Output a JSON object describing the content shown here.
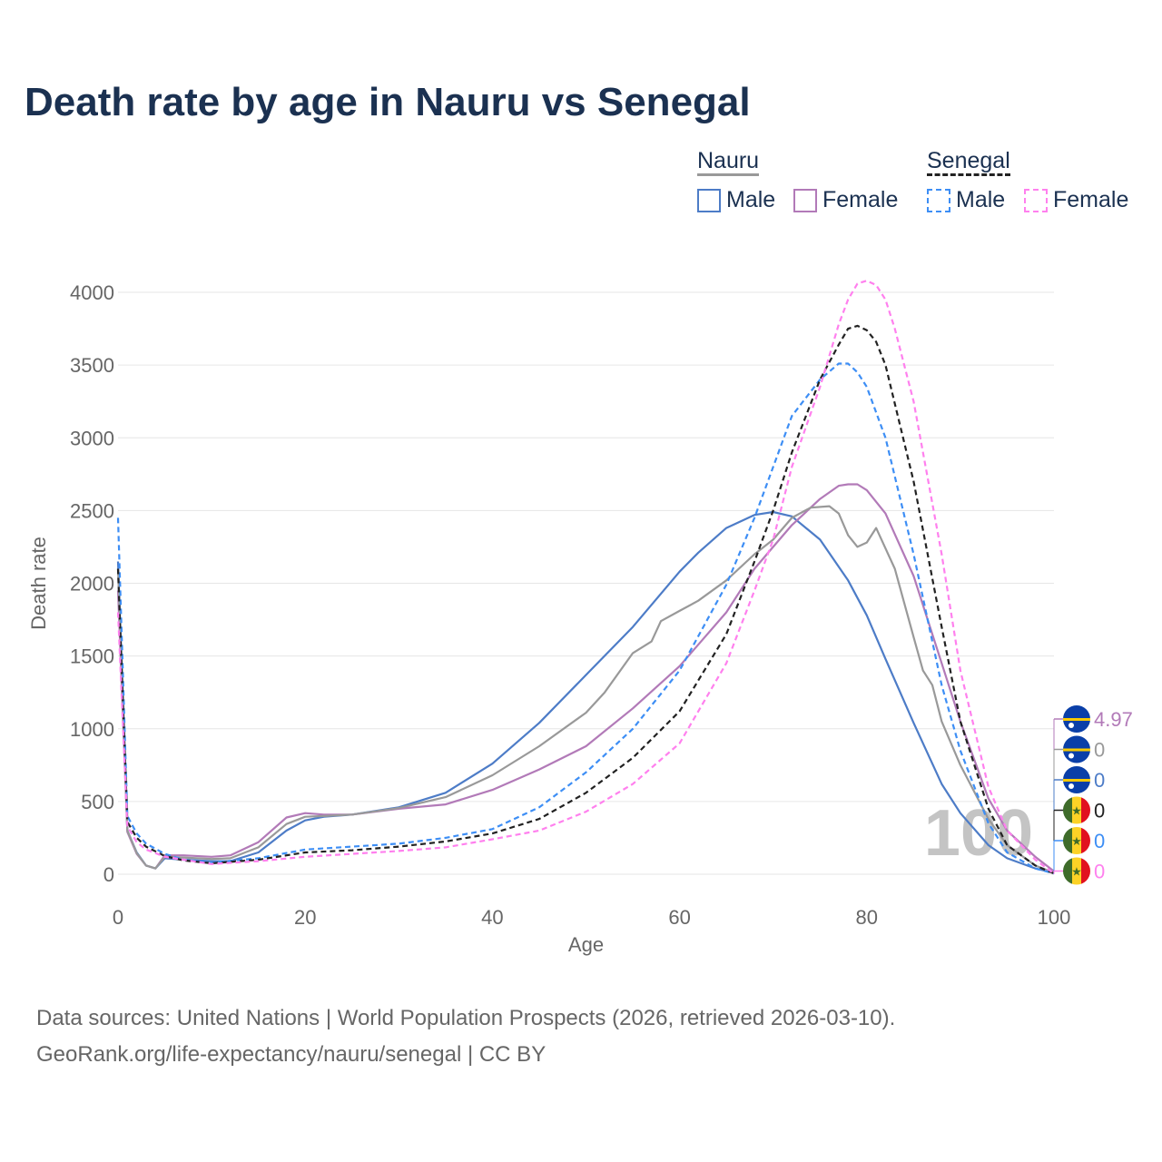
{
  "chart_data": {
    "type": "line",
    "title": "Death rate by age in Nauru vs Senegal",
    "xlabel": "Age",
    "ylabel": "Death rate",
    "xlim": [
      0,
      100
    ],
    "ylim": [
      0,
      4000
    ],
    "xticks": [
      "0",
      "20",
      "40",
      "60",
      "80",
      "100"
    ],
    "yticks": [
      "0",
      "500",
      "1000",
      "1500",
      "2000",
      "2500",
      "3000",
      "3500",
      "4000"
    ],
    "grid": true,
    "legend": {
      "groups": [
        {
          "name": "Nauru",
          "items": [
            "Male",
            "Female"
          ]
        },
        {
          "name": "Senegal",
          "items": [
            "Male",
            "Female"
          ]
        }
      ],
      "placement": "top-right"
    },
    "year_watermark": "100",
    "series": [
      {
        "name": "Nauru Male",
        "color": "#4d7cc7",
        "dash": false,
        "x": [
          0,
          1,
          2,
          3,
          4,
          5,
          7,
          10,
          12,
          15,
          18,
          20,
          22,
          25,
          30,
          35,
          40,
          45,
          50,
          55,
          60,
          62,
          65,
          68,
          70,
          72,
          75,
          78,
          80,
          82,
          85,
          88,
          90,
          93,
          95,
          98,
          100
        ],
        "y": [
          2150,
          300,
          150,
          60,
          40,
          110,
          100,
          90,
          90,
          150,
          300,
          370,
          395,
          410,
          460,
          560,
          760,
          1040,
          1370,
          1700,
          2080,
          2210,
          2380,
          2470,
          2490,
          2460,
          2300,
          2020,
          1780,
          1480,
          1040,
          620,
          420,
          200,
          110,
          40,
          10
        ]
      },
      {
        "name": "Nauru Female",
        "color": "#b27ab8",
        "dash": false,
        "x": [
          0,
          1,
          2,
          3,
          4,
          5,
          7,
          10,
          12,
          15,
          18,
          20,
          22,
          25,
          30,
          35,
          40,
          45,
          50,
          55,
          60,
          65,
          68,
          70,
          72,
          75,
          77,
          78,
          79,
          80,
          82,
          85,
          88,
          90,
          93,
          95,
          98,
          100
        ],
        "y": [
          1950,
          290,
          140,
          60,
          40,
          130,
          130,
          120,
          130,
          220,
          390,
          420,
          410,
          410,
          450,
          480,
          580,
          720,
          880,
          1140,
          1430,
          1800,
          2100,
          2250,
          2400,
          2580,
          2670,
          2680,
          2680,
          2640,
          2480,
          2050,
          1450,
          1050,
          520,
          300,
          120,
          20
        ]
      },
      {
        "name": "Nauru",
        "color": "#999999",
        "dash": false,
        "x": [
          0,
          1,
          2,
          3,
          4,
          5,
          7,
          10,
          12,
          15,
          18,
          20,
          22,
          25,
          30,
          35,
          40,
          45,
          50,
          52,
          55,
          57,
          58,
          60,
          62,
          65,
          68,
          70,
          72,
          74,
          76,
          77,
          78,
          79,
          80,
          81,
          83,
          85,
          86,
          87,
          88,
          90,
          93,
          95,
          98,
          100
        ],
        "y": [
          2100,
          300,
          145,
          60,
          40,
          120,
          115,
          105,
          110,
          185,
          345,
          395,
          400,
          410,
          455,
          530,
          680,
          880,
          1110,
          1250,
          1520,
          1600,
          1740,
          1810,
          1880,
          2020,
          2200,
          2300,
          2450,
          2520,
          2530,
          2480,
          2330,
          2250,
          2280,
          2380,
          2100,
          1630,
          1400,
          1300,
          1050,
          750,
          380,
          200,
          60,
          10
        ]
      },
      {
        "name": "Senegal Male",
        "color": "#3d8ef5",
        "dash": true,
        "x": [
          0,
          1,
          2,
          3,
          5,
          7,
          10,
          15,
          20,
          25,
          30,
          35,
          40,
          45,
          50,
          55,
          60,
          65,
          68,
          70,
          72,
          75,
          77,
          78,
          79,
          80,
          82,
          85,
          88,
          90,
          93,
          95,
          98,
          100
        ],
        "y": [
          2450,
          400,
          280,
          210,
          140,
          100,
          80,
          110,
          170,
          190,
          210,
          250,
          310,
          460,
          700,
          1000,
          1400,
          1990,
          2450,
          2800,
          3150,
          3400,
          3510,
          3510,
          3450,
          3350,
          3000,
          2200,
          1300,
          850,
          350,
          150,
          40,
          5
        ]
      },
      {
        "name": "Senegal",
        "color": "#222222",
        "dash": true,
        "x": [
          0,
          1,
          2,
          3,
          5,
          7,
          10,
          15,
          20,
          25,
          30,
          35,
          40,
          45,
          50,
          55,
          60,
          65,
          68,
          70,
          72,
          75,
          77,
          78,
          79,
          80,
          81,
          82,
          85,
          88,
          90,
          93,
          95,
          98,
          100
        ],
        "y": [
          2100,
          360,
          250,
          190,
          125,
          95,
          75,
          100,
          150,
          165,
          190,
          225,
          280,
          380,
          560,
          800,
          1120,
          1650,
          2150,
          2500,
          2900,
          3400,
          3640,
          3750,
          3770,
          3740,
          3660,
          3500,
          2700,
          1700,
          1050,
          450,
          200,
          60,
          5
        ]
      },
      {
        "name": "Senegal Female",
        "color": "#ff80ee",
        "dash": true,
        "x": [
          0,
          1,
          2,
          3,
          5,
          7,
          10,
          15,
          20,
          25,
          30,
          35,
          40,
          45,
          50,
          55,
          60,
          65,
          68,
          70,
          72,
          75,
          77,
          78,
          79,
          80,
          81,
          82,
          83,
          85,
          88,
          90,
          93,
          95,
          98,
          100
        ],
        "y": [
          1800,
          330,
          220,
          170,
          120,
          100,
          70,
          90,
          120,
          140,
          160,
          185,
          240,
          300,
          430,
          620,
          900,
          1450,
          1950,
          2300,
          2800,
          3350,
          3780,
          3950,
          4060,
          4080,
          4050,
          3950,
          3750,
          3250,
          2200,
          1400,
          600,
          300,
          100,
          5
        ]
      }
    ],
    "end_labels": [
      {
        "country": "Nauru",
        "value": "4.97",
        "color": "#b27ab8"
      },
      {
        "country": "Nauru",
        "value": "0",
        "color": "#999999"
      },
      {
        "country": "Nauru",
        "value": "0",
        "color": "#4d7cc7"
      },
      {
        "country": "Senegal",
        "value": "0",
        "color": "#222222"
      },
      {
        "country": "Senegal",
        "value": "0",
        "color": "#3d8ef5"
      },
      {
        "country": "Senegal",
        "value": "0",
        "color": "#ff80ee"
      }
    ]
  },
  "source_line1": "Data sources: United Nations | World Population Prospects (2026, retrieved 2026-03-10).",
  "source_line2": "GeoRank.org/life-expectancy/nauru/senegal | CC BY"
}
